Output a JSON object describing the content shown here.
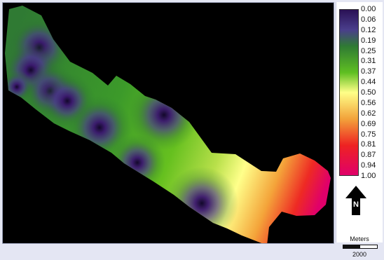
{
  "legend": {
    "ticks": [
      "0.00",
      "0.06",
      "0.12",
      "0.19",
      "0.25",
      "0.31",
      "0.37",
      "0.44",
      "0.50",
      "0.56",
      "0.62",
      "0.69",
      "0.75",
      "0.81",
      "0.87",
      "0.94",
      "1.00"
    ],
    "colors": {
      "low": "#2a1155",
      "low_mid": "#3a7a2a",
      "mid": "#5fbf22",
      "high_mid": "#ffff88",
      "warm": "#f2a23a",
      "hot": "#ee2222",
      "max": "#e0006a"
    }
  },
  "north_arrow": {
    "label": "N",
    "icon": "north-arrow-icon"
  },
  "scale": {
    "title": "Meters",
    "value": "2000"
  },
  "surface": {
    "minima_points": 9,
    "value_range": [
      0.0,
      1.0
    ]
  }
}
